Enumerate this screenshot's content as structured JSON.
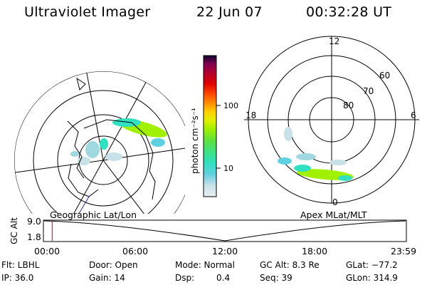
{
  "header": {
    "instrument": "Ultraviolet Imager",
    "date": "22 Jun 07",
    "time": "00:32:28 UT"
  },
  "maps": {
    "left_label": "Geographic Lat/Lon",
    "right_label": "Apex MLat/MLT"
  },
  "polar_labels": {
    "mlt_top": "12",
    "mlt_left": "18",
    "mlt_right": "6",
    "mlt_bottom": "0",
    "lat_60": "60",
    "lat_70": "70",
    "lat_80": "80"
  },
  "colorbar": {
    "unit_label": "photon cm⁻²s⁻¹",
    "tick_100": "100",
    "tick_10": "10",
    "colors": [
      "#e8f0f0",
      "#c8e0e8",
      "#a0d8e0",
      "#60d0e0",
      "#30e0c0",
      "#40e080",
      "#60e040",
      "#a0f000",
      "#e0f000",
      "#ffd000",
      "#ff9000",
      "#ff5000",
      "#e00000",
      "#b00030",
      "#800050",
      "#400060",
      "#100030"
    ]
  },
  "timeline": {
    "y_label": "GC Alt",
    "y_ticks": [
      "9.0",
      "1.8"
    ],
    "x_ticks": [
      "00:00",
      "06:00",
      "12:00",
      "18:00",
      "23:59"
    ],
    "marker_time": "00:32",
    "marker_color": "#cc0000"
  },
  "info": {
    "flt": "Flt: LBHL",
    "door": "Door: Open",
    "mode": "Mode: Normal",
    "gc_alt": "GC Alt: 8.3 Re",
    "glat": "GLat: −77.2",
    "ip": "IP: 36.0",
    "gain": "Gain: 14",
    "dsp_label": "Dsp:",
    "dsp_value": "0.4",
    "seq": "Seq: 39",
    "glon": "GLon: 314.9"
  }
}
